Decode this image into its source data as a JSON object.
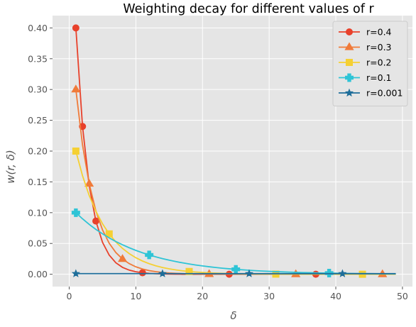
{
  "chart_data": {
    "type": "line",
    "title": "Weighting decay for different values of r",
    "xlabel": "δ",
    "ylabel": "w(r, δ)",
    "xlim": [
      -2.5,
      51.5
    ],
    "ylim": [
      -0.02,
      0.42
    ],
    "xticks": [
      0,
      10,
      20,
      30,
      40,
      50
    ],
    "yticks": [
      0.0,
      0.05,
      0.1,
      0.15,
      0.2,
      0.25,
      0.3,
      0.35,
      0.4
    ],
    "xtick_labels": [
      "0",
      "10",
      "20",
      "30",
      "40",
      "50"
    ],
    "ytick_labels": [
      "0.00",
      "0.05",
      "0.10",
      "0.15",
      "0.20",
      "0.25",
      "0.30",
      "0.35",
      "0.40"
    ],
    "grid": true,
    "legend_position": "top-right",
    "x": [
      1,
      2,
      3,
      4,
      5,
      6,
      7,
      8,
      9,
      10,
      11,
      12,
      13,
      14,
      15,
      16,
      17,
      18,
      19,
      20,
      21,
      22,
      23,
      24,
      25,
      26,
      27,
      28,
      29,
      30,
      31,
      32,
      33,
      34,
      35,
      36,
      37,
      38,
      39,
      40,
      41,
      42,
      43,
      44,
      45,
      46,
      47,
      48,
      49
    ],
    "series": [
      {
        "name": "r=0.4",
        "color": "#e8412b",
        "marker": "circle",
        "marker_every": [
          0,
          1,
          3,
          10,
          23,
          36
        ],
        "values": [
          0.4,
          0.24,
          0.144,
          0.0864,
          0.05184,
          0.031104,
          0.0186624,
          0.01119744,
          0.006718464,
          0.0040310784,
          0.002418647,
          0.001451188,
          0.000870713,
          0.000522428,
          0.000313457,
          0.000188074,
          0.000112844,
          6.77e-05,
          4.06e-05,
          2.44e-05,
          1.46e-05,
          8.8e-06,
          5.3e-06,
          3.2e-06,
          1.9e-06,
          1.1e-06,
          7e-07,
          4e-07,
          2e-07,
          1e-07,
          1e-07,
          0.0,
          0.0,
          0.0,
          0.0,
          0.0,
          0.0,
          0.0,
          0.0,
          0.0,
          0.0,
          0.0,
          0.0,
          0.0,
          0.0,
          0.0,
          0.0,
          0.0,
          0.0
        ]
      },
      {
        "name": "r=0.3",
        "color": "#f07b3a",
        "marker": "triangle",
        "marker_every": [
          0,
          2,
          7,
          20,
          33,
          46
        ],
        "values": [
          0.3,
          0.21,
          0.147,
          0.1029,
          0.07203,
          0.050421,
          0.0352947,
          0.02470629,
          0.017294403,
          0.012106082,
          0.008474257,
          0.00593198,
          0.004152386,
          0.00290667,
          0.002034669,
          0.001424268,
          0.000996988,
          0.000697891,
          0.000488524,
          0.000341967,
          0.000239377,
          0.000167564,
          0.000117295,
          8.21e-05,
          5.75e-05,
          4.02e-05,
          2.82e-05,
          1.97e-05,
          1.38e-05,
          9.7e-06,
          6.8e-06,
          4.7e-06,
          3.3e-06,
          2.3e-06,
          1.6e-06,
          1.1e-06,
          8e-07,
          6e-07,
          4e-07,
          3e-07,
          2e-07,
          1e-07,
          1e-07,
          1e-07,
          0.0,
          0.0,
          0.0,
          0.0,
          0.0
        ]
      },
      {
        "name": "r=0.2",
        "color": "#f5d033",
        "marker": "square",
        "marker_every": [
          0,
          5,
          17,
          30,
          43
        ],
        "values": [
          0.2,
          0.16,
          0.128,
          0.1024,
          0.08192,
          0.065536,
          0.0524288,
          0.04194304,
          0.033554432,
          0.026843546,
          0.021474836,
          0.017179869,
          0.013743895,
          0.010995116,
          0.008796093,
          0.007036874,
          0.005629499,
          0.0045036,
          0.00360288,
          0.002882304,
          0.002305843,
          0.001844674,
          0.00147574,
          0.001180592,
          0.000944473,
          0.000755579,
          0.000604463,
          0.00048357,
          0.000386856,
          0.000309485,
          0.000247588,
          0.00019807,
          0.000158456,
          0.000126765,
          0.000101412,
          8.11e-05,
          6.49e-05,
          5.19e-05,
          4.15e-05,
          3.32e-05,
          2.66e-05,
          2.13e-05,
          1.7e-05,
          1.36e-05,
          1.09e-05,
          8.7e-06,
          7e-06,
          5.6e-06,
          4.5e-06
        ]
      },
      {
        "name": "r=0.1",
        "color": "#2ec4d6",
        "marker": "plus",
        "marker_every": [
          0,
          11,
          24,
          38
        ],
        "values": [
          0.1,
          0.09,
          0.081,
          0.0729,
          0.06561,
          0.059049,
          0.0531441,
          0.04782969,
          0.043046721,
          0.038742049,
          0.034867844,
          0.03138106,
          0.028242954,
          0.025418658,
          0.022876792,
          0.020589113,
          0.018530202,
          0.016677182,
          0.015009464,
          0.013508517,
          0.012157665,
          0.010941899,
          0.009847709,
          0.008862938,
          0.007976644,
          0.00717898,
          0.006461082,
          0.005814974,
          0.005233476,
          0.004710129,
          0.004239116,
          0.003815204,
          0.003433684,
          0.003090315,
          0.002781284,
          0.002503156,
          0.00225284,
          0.002027556,
          0.0018248,
          0.00164232,
          0.001478088,
          0.001330279,
          0.001197252,
          0.001077526,
          0.000969774,
          0.000872796,
          0.000785517,
          0.000706965,
          0.000636269
        ]
      },
      {
        "name": "r=0.001",
        "color": "#1f6e9a",
        "marker": "star",
        "marker_every": [
          0,
          13,
          26,
          40
        ],
        "values": [
          0.001,
          0.000999,
          0.000998,
          0.000997,
          0.000996,
          0.000995,
          0.000994,
          0.000993,
          0.000992,
          0.000991,
          0.00099,
          0.000989,
          0.000988,
          0.000987,
          0.000986,
          0.000985,
          0.000984,
          0.000983,
          0.000982,
          0.000981,
          0.00098,
          0.000979,
          0.000978,
          0.000977,
          0.000976,
          0.000975,
          0.000974,
          0.000973,
          0.000972,
          0.000971,
          0.00097,
          0.000969,
          0.000968,
          0.000967,
          0.000966,
          0.000965,
          0.000964,
          0.000963,
          0.000962,
          0.000961,
          0.00096,
          0.000959,
          0.000958,
          0.000957,
          0.000956,
          0.000955,
          0.000954,
          0.000953,
          0.000952
        ]
      }
    ]
  }
}
